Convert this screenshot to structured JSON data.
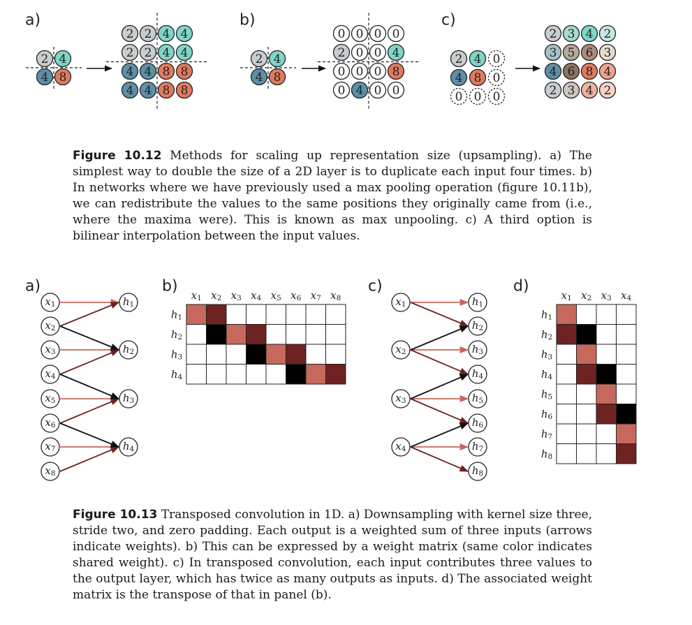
{
  "colors": {
    "gray": "#c8cdd0",
    "teal": "#7ed6c8",
    "blue": "#5e8fa8",
    "orange": "#e07a5f",
    "tan": "#b8ab9c",
    "brown": "#8e7462",
    "beige": "#dcd4c6",
    "salmon": "#f3b8a6",
    "w_light": "#c7685c",
    "w_dark": "#6e2222",
    "w_black": "#000000",
    "arrow_light": "#c7685c",
    "arrow_dark": "#6e2222"
  },
  "figure12": {
    "panel_a": {
      "label": "a)",
      "input": [
        [
          "2",
          "4"
        ],
        [
          "4",
          "8"
        ]
      ],
      "output": [
        [
          "2",
          "2",
          "4",
          "4"
        ],
        [
          "2",
          "2",
          "4",
          "4"
        ],
        [
          "4",
          "4",
          "8",
          "8"
        ],
        [
          "4",
          "4",
          "8",
          "8"
        ]
      ]
    },
    "panel_b": {
      "label": "b)",
      "input": [
        [
          "2",
          "4"
        ],
        [
          "4",
          "8"
        ]
      ],
      "output": [
        [
          "0",
          "0",
          "0",
          "0"
        ],
        [
          "2",
          "0",
          "0",
          "4"
        ],
        [
          "0",
          "0",
          "0",
          "8"
        ],
        [
          "0",
          "4",
          "0",
          "0"
        ]
      ]
    },
    "panel_c": {
      "label": "c)",
      "input": [
        [
          "2",
          "4",
          "0"
        ],
        [
          "4",
          "8",
          "0"
        ],
        [
          "0",
          "0",
          "0"
        ]
      ],
      "output": [
        [
          "2",
          "3",
          "4",
          "2"
        ],
        [
          "3",
          "5",
          "6",
          "3"
        ],
        [
          "4",
          "6",
          "8",
          "4"
        ],
        [
          "2",
          "3",
          "4",
          "2"
        ]
      ]
    },
    "caption_label": "Figure 10.12",
    "caption_text": " Methods for scaling up representation size (upsampling). a) The simplest way to double the size of a 2D layer is to duplicate each input four times. b) In networks where we have previously used a max pooling operation (figure 10.11b), we can redistribute the values to the same positions they originally came from (i.e., where the maxima were). This is known as max unpooling. c) A third option is bilinear interpolation between the input values."
  },
  "figure13": {
    "panel_a_label": "a)",
    "panel_b_label": "b)",
    "panel_c_label": "c)",
    "panel_d_label": "d)",
    "x_nodes": [
      "x1",
      "x2",
      "x3",
      "x4",
      "x5",
      "x6",
      "x7",
      "x8"
    ],
    "h_nodes": [
      "h1",
      "h2",
      "h3",
      "h4"
    ],
    "x_nodes_c": [
      "x1",
      "x2",
      "x3",
      "x4"
    ],
    "h_nodes_c": [
      "h1",
      "h2",
      "h3",
      "h4",
      "h5",
      "h6",
      "h7",
      "h8"
    ],
    "matrix_b_cols": [
      "x1",
      "x2",
      "x3",
      "x4",
      "x5",
      "x6",
      "x7",
      "x8"
    ],
    "matrix_b_rows": [
      "h1",
      "h2",
      "h3",
      "h4"
    ],
    "matrix_b": [
      [
        "L",
        "D",
        "",
        "",
        "",
        "",
        "",
        ""
      ],
      [
        "",
        "K",
        "L",
        "D",
        "",
        "",
        "",
        ""
      ],
      [
        "",
        "",
        "",
        "K",
        "L",
        "D",
        "",
        ""
      ],
      [
        "",
        "",
        "",
        "",
        "",
        "K",
        "L",
        "D"
      ]
    ],
    "matrix_d_cols": [
      "x1",
      "x2",
      "x3",
      "x4"
    ],
    "matrix_d_rows": [
      "h1",
      "h2",
      "h3",
      "h4",
      "h5",
      "h6",
      "h7",
      "h8"
    ],
    "matrix_d": [
      [
        "L",
        "",
        "",
        ""
      ],
      [
        "D",
        "K",
        "",
        ""
      ],
      [
        "",
        "L",
        "",
        ""
      ],
      [
        "",
        "D",
        "K",
        ""
      ],
      [
        "",
        "",
        "L",
        ""
      ],
      [
        "",
        "",
        "D",
        "K"
      ],
      [
        "",
        "",
        "",
        "L"
      ],
      [
        "",
        "",
        "",
        "D"
      ]
    ],
    "caption_label": "Figure 10.13",
    "caption_text": " Transposed convolution in 1D. a) Downsampling with kernel size three, stride two, and zero padding. Each output is a weighted sum of three inputs (arrows indicate weights). b) This can be expressed by a weight matrix (same color indicates shared weight). c) In transposed convolution, each input contributes three values to the output layer, which has twice as many outputs as inputs. d) The associated weight matrix is the transpose of that in panel (b)."
  }
}
